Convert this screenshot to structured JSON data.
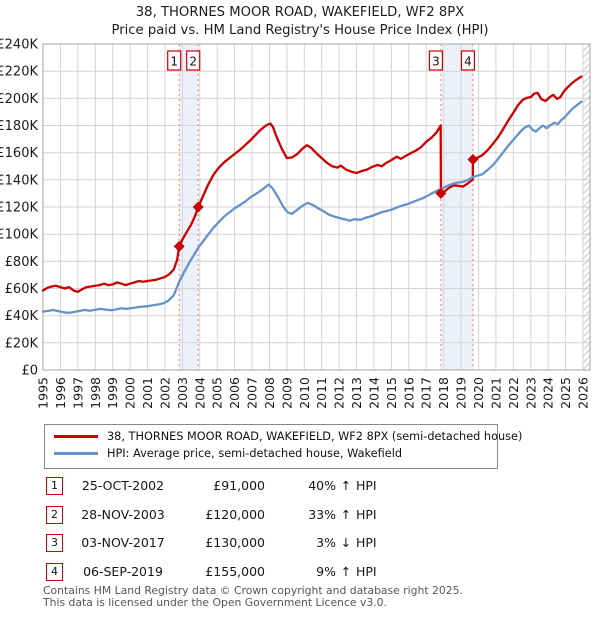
{
  "header": {
    "title": "38, THORNES MOOR ROAD, WAKEFIELD, WF2 8PX",
    "subtitle": "Price paid vs. HM Land Registry's House Price Index (HPI)"
  },
  "chart_data": {
    "type": "line",
    "title": "38, THORNES MOOR ROAD, WAKEFIELD, WF2 8PX — Price paid vs. HPI",
    "x_min": 1995,
    "x_max": 2026.4,
    "y_max": 240,
    "y_unit": "GBP thousands",
    "grid": true,
    "x_ticks": [
      1995,
      1996,
      1997,
      1998,
      1999,
      2000,
      2001,
      2002,
      2003,
      2004,
      2005,
      2006,
      2007,
      2008,
      2009,
      2010,
      2011,
      2012,
      2013,
      2014,
      2015,
      2016,
      2017,
      2018,
      2019,
      2020,
      2021,
      2022,
      2023,
      2024,
      2025,
      2026
    ],
    "y_ticks": [
      {
        "v": 0,
        "label": "£0"
      },
      {
        "v": 20,
        "label": "£20K"
      },
      {
        "v": 40,
        "label": "£40K"
      },
      {
        "v": 60,
        "label": "£60K"
      },
      {
        "v": 80,
        "label": "£80K"
      },
      {
        "v": 100,
        "label": "£100K"
      },
      {
        "v": 120,
        "label": "£120K"
      },
      {
        "v": 140,
        "label": "£140K"
      },
      {
        "v": 160,
        "label": "£160K"
      },
      {
        "v": 180,
        "label": "£180K"
      },
      {
        "v": 200,
        "label": "£200K"
      },
      {
        "v": 220,
        "label": "£220K"
      },
      {
        "v": 240,
        "label": "£240K"
      }
    ],
    "future_from": 2026.0,
    "band_color": "rgba(110,145,210,0.13)",
    "grid_color": "#d4d4d4",
    "border_color": "#a6a6a6",
    "marker_line_color": "#f07878",
    "hatch_color": "#c9c9c9",
    "highlight_bands": [
      [
        2002.82,
        2003.91
      ],
      [
        2017.84,
        2019.68
      ]
    ],
    "series": [
      {
        "name": "price-paid",
        "label": "38, THORNES MOOR ROAD, WAKEFIELD, WF2 8PX (semi-detached house)",
        "color": "#cc0000",
        "points": [
          [
            1995.0,
            58.5
          ],
          [
            1995.25,
            60.5
          ],
          [
            1995.5,
            61.5
          ],
          [
            1995.75,
            62
          ],
          [
            1996.0,
            61
          ],
          [
            1996.25,
            60
          ],
          [
            1996.5,
            61
          ],
          [
            1996.75,
            58.5
          ],
          [
            1997.0,
            57.5
          ],
          [
            1997.25,
            59.5
          ],
          [
            1997.5,
            61
          ],
          [
            1997.75,
            61.5
          ],
          [
            1998.0,
            62
          ],
          [
            1998.25,
            62.5
          ],
          [
            1998.5,
            63.5
          ],
          [
            1998.75,
            62.5
          ],
          [
            1999.0,
            63
          ],
          [
            1999.25,
            64.5
          ],
          [
            1999.5,
            63.5
          ],
          [
            1999.75,
            62.5
          ],
          [
            2000.0,
            63.5
          ],
          [
            2000.25,
            64.5
          ],
          [
            2000.5,
            65.5
          ],
          [
            2000.75,
            65
          ],
          [
            2001.0,
            65.5
          ],
          [
            2001.25,
            66
          ],
          [
            2001.5,
            66.5
          ],
          [
            2001.75,
            67.5
          ],
          [
            2002.0,
            68.5
          ],
          [
            2002.25,
            70.5
          ],
          [
            2002.5,
            74
          ],
          [
            2002.7,
            81
          ],
          [
            2002.82,
            91
          ],
          [
            2003.0,
            96
          ],
          [
            2003.25,
            101.5
          ],
          [
            2003.5,
            107
          ],
          [
            2003.75,
            114
          ],
          [
            2003.91,
            120
          ],
          [
            2004.2,
            128.5
          ],
          [
            2004.5,
            137
          ],
          [
            2004.8,
            144
          ],
          [
            2005.1,
            149
          ],
          [
            2005.4,
            153
          ],
          [
            2005.7,
            156
          ],
          [
            2006.0,
            159
          ],
          [
            2006.3,
            162
          ],
          [
            2006.6,
            165.5
          ],
          [
            2006.9,
            169
          ],
          [
            2007.2,
            173
          ],
          [
            2007.5,
            177
          ],
          [
            2007.8,
            180
          ],
          [
            2008.05,
            181.5
          ],
          [
            2008.2,
            179
          ],
          [
            2008.4,
            172
          ],
          [
            2008.7,
            163
          ],
          [
            2009.0,
            156
          ],
          [
            2009.3,
            156.5
          ],
          [
            2009.6,
            159
          ],
          [
            2009.9,
            163
          ],
          [
            2010.15,
            165.5
          ],
          [
            2010.4,
            163.5
          ],
          [
            2010.7,
            159.5
          ],
          [
            2011.0,
            156
          ],
          [
            2011.3,
            152.5
          ],
          [
            2011.6,
            150
          ],
          [
            2011.9,
            149
          ],
          [
            2012.1,
            150.5
          ],
          [
            2012.4,
            147.5
          ],
          [
            2012.7,
            146
          ],
          [
            2013.0,
            145
          ],
          [
            2013.3,
            146.5
          ],
          [
            2013.6,
            147.5
          ],
          [
            2013.9,
            149.5
          ],
          [
            2014.2,
            151
          ],
          [
            2014.45,
            150
          ],
          [
            2014.7,
            152.5
          ],
          [
            2015.0,
            154.5
          ],
          [
            2015.3,
            157
          ],
          [
            2015.55,
            155.5
          ],
          [
            2015.8,
            157.5
          ],
          [
            2016.1,
            159.5
          ],
          [
            2016.4,
            161.5
          ],
          [
            2016.7,
            164
          ],
          [
            2017.0,
            168
          ],
          [
            2017.3,
            171
          ],
          [
            2017.6,
            175
          ],
          [
            2017.83,
            180
          ],
          [
            2017.84,
            130
          ],
          [
            2018.1,
            132
          ],
          [
            2018.35,
            134.5
          ],
          [
            2018.6,
            136
          ],
          [
            2018.85,
            135.5
          ],
          [
            2019.1,
            135
          ],
          [
            2019.35,
            137
          ],
          [
            2019.6,
            139.5
          ],
          [
            2019.67,
            140
          ],
          [
            2019.68,
            155
          ],
          [
            2019.9,
            156
          ],
          [
            2020.2,
            158
          ],
          [
            2020.5,
            161.5
          ],
          [
            2020.8,
            166
          ],
          [
            2021.1,
            171
          ],
          [
            2021.4,
            177
          ],
          [
            2021.7,
            183.5
          ],
          [
            2022.0,
            189.5
          ],
          [
            2022.3,
            195.5
          ],
          [
            2022.55,
            199
          ],
          [
            2022.8,
            200.5
          ],
          [
            2023.0,
            201
          ],
          [
            2023.2,
            203.5
          ],
          [
            2023.4,
            204
          ],
          [
            2023.6,
            199.5
          ],
          [
            2023.85,
            198
          ],
          [
            2024.1,
            201
          ],
          [
            2024.3,
            202.5
          ],
          [
            2024.5,
            199.5
          ],
          [
            2024.7,
            201
          ],
          [
            2024.9,
            205
          ],
          [
            2025.1,
            208
          ],
          [
            2025.35,
            211
          ],
          [
            2025.6,
            213.5
          ],
          [
            2025.9,
            216
          ]
        ]
      },
      {
        "name": "hpi",
        "label": "HPI: Average price, semi-detached house, Wakefield",
        "color": "#6593c9",
        "points": [
          [
            1995.0,
            43
          ],
          [
            1995.3,
            43.5
          ],
          [
            1995.6,
            44.2
          ],
          [
            1995.9,
            43.2
          ],
          [
            1996.2,
            42.5
          ],
          [
            1996.5,
            42
          ],
          [
            1996.8,
            42.8
          ],
          [
            1997.1,
            43.5
          ],
          [
            1997.4,
            44.2
          ],
          [
            1997.7,
            43.6
          ],
          [
            1998.0,
            44.3
          ],
          [
            1998.3,
            45
          ],
          [
            1998.6,
            44.5
          ],
          [
            1998.9,
            44
          ],
          [
            1999.2,
            44.6
          ],
          [
            1999.5,
            45.4
          ],
          [
            1999.8,
            45
          ],
          [
            2000.1,
            45.6
          ],
          [
            2000.4,
            46.2
          ],
          [
            2000.7,
            46.6
          ],
          [
            2001.0,
            47
          ],
          [
            2001.3,
            47.6
          ],
          [
            2001.6,
            48.2
          ],
          [
            2001.9,
            49
          ],
          [
            2002.2,
            51
          ],
          [
            2002.5,
            55
          ],
          [
            2002.82,
            65
          ],
          [
            2003.1,
            72
          ],
          [
            2003.4,
            79
          ],
          [
            2003.7,
            85.5
          ],
          [
            2003.91,
            90
          ],
          [
            2004.2,
            95
          ],
          [
            2004.5,
            100
          ],
          [
            2004.8,
            105
          ],
          [
            2005.1,
            109
          ],
          [
            2005.4,
            113
          ],
          [
            2005.7,
            116
          ],
          [
            2006.0,
            119
          ],
          [
            2006.3,
            121.5
          ],
          [
            2006.6,
            124
          ],
          [
            2006.9,
            127
          ],
          [
            2007.2,
            129.5
          ],
          [
            2007.5,
            132
          ],
          [
            2007.8,
            135
          ],
          [
            2007.95,
            136.5
          ],
          [
            2008.2,
            133.5
          ],
          [
            2008.5,
            127
          ],
          [
            2008.8,
            120
          ],
          [
            2009.05,
            116
          ],
          [
            2009.3,
            115
          ],
          [
            2009.6,
            118
          ],
          [
            2009.9,
            121
          ],
          [
            2010.2,
            123
          ],
          [
            2010.5,
            121.5
          ],
          [
            2010.8,
            119
          ],
          [
            2011.1,
            117
          ],
          [
            2011.4,
            114.5
          ],
          [
            2011.7,
            113
          ],
          [
            2012.0,
            112
          ],
          [
            2012.3,
            111
          ],
          [
            2012.6,
            110
          ],
          [
            2012.9,
            111
          ],
          [
            2013.2,
            110.5
          ],
          [
            2013.5,
            112
          ],
          [
            2013.8,
            113
          ],
          [
            2014.1,
            114.5
          ],
          [
            2014.4,
            116
          ],
          [
            2014.7,
            117
          ],
          [
            2015.0,
            118
          ],
          [
            2015.3,
            119.5
          ],
          [
            2015.6,
            121
          ],
          [
            2015.9,
            122
          ],
          [
            2016.2,
            123.5
          ],
          [
            2016.5,
            125
          ],
          [
            2016.8,
            126.5
          ],
          [
            2017.1,
            128.5
          ],
          [
            2017.4,
            130.5
          ],
          [
            2017.7,
            132.5
          ],
          [
            2017.95,
            134
          ],
          [
            2018.2,
            135.5
          ],
          [
            2018.5,
            137
          ],
          [
            2018.8,
            138
          ],
          [
            2019.1,
            138.5
          ],
          [
            2019.4,
            140
          ],
          [
            2019.68,
            142
          ],
          [
            2019.9,
            143
          ],
          [
            2020.2,
            144
          ],
          [
            2020.5,
            147
          ],
          [
            2020.8,
            150.5
          ],
          [
            2021.1,
            155
          ],
          [
            2021.4,
            160
          ],
          [
            2021.7,
            165
          ],
          [
            2022.0,
            169.5
          ],
          [
            2022.3,
            174
          ],
          [
            2022.6,
            178
          ],
          [
            2022.9,
            180
          ],
          [
            2023.1,
            177
          ],
          [
            2023.3,
            175.5
          ],
          [
            2023.5,
            178
          ],
          [
            2023.7,
            180
          ],
          [
            2023.9,
            178
          ],
          [
            2024.1,
            180
          ],
          [
            2024.35,
            182
          ],
          [
            2024.55,
            181
          ],
          [
            2024.75,
            184
          ],
          [
            2024.95,
            186
          ],
          [
            2025.15,
            189
          ],
          [
            2025.4,
            192.5
          ],
          [
            2025.65,
            195
          ],
          [
            2025.9,
            197.5
          ]
        ]
      }
    ],
    "sale_markers": [
      {
        "n": "1",
        "x": 2002.82,
        "y": 91
      },
      {
        "n": "2",
        "x": 2003.91,
        "y": 120
      },
      {
        "n": "3",
        "x": 2017.84,
        "y": 130
      },
      {
        "n": "4",
        "x": 2019.68,
        "y": 155
      }
    ]
  },
  "legend": [
    {
      "label": "38, THORNES MOOR ROAD, WAKEFIELD, WF2 8PX (semi-detached house)",
      "color": "#cc0000"
    },
    {
      "label": "HPI: Average price, semi-detached house, Wakefield",
      "color": "#6593c9"
    }
  ],
  "transactions": [
    {
      "num": "1",
      "date": "25-OCT-2002",
      "price": "£91,000",
      "hpi_pct": "40%",
      "hpi_dir": "↑",
      "hpi_label": "HPI"
    },
    {
      "num": "2",
      "date": "28-NOV-2003",
      "price": "£120,000",
      "hpi_pct": "33%",
      "hpi_dir": "↑",
      "hpi_label": "HPI"
    },
    {
      "num": "3",
      "date": "03-NOV-2017",
      "price": "£130,000",
      "hpi_pct": "3%",
      "hpi_dir": "↓",
      "hpi_label": "HPI"
    },
    {
      "num": "4",
      "date": "06-SEP-2019",
      "price": "£155,000",
      "hpi_pct": "9%",
      "hpi_dir": "↑",
      "hpi_label": "HPI"
    }
  ],
  "footer": {
    "line1": "Contains HM Land Registry data © Crown copyright and database right 2025.",
    "line2": "This data is licensed under the Open Government Licence v3.0."
  }
}
